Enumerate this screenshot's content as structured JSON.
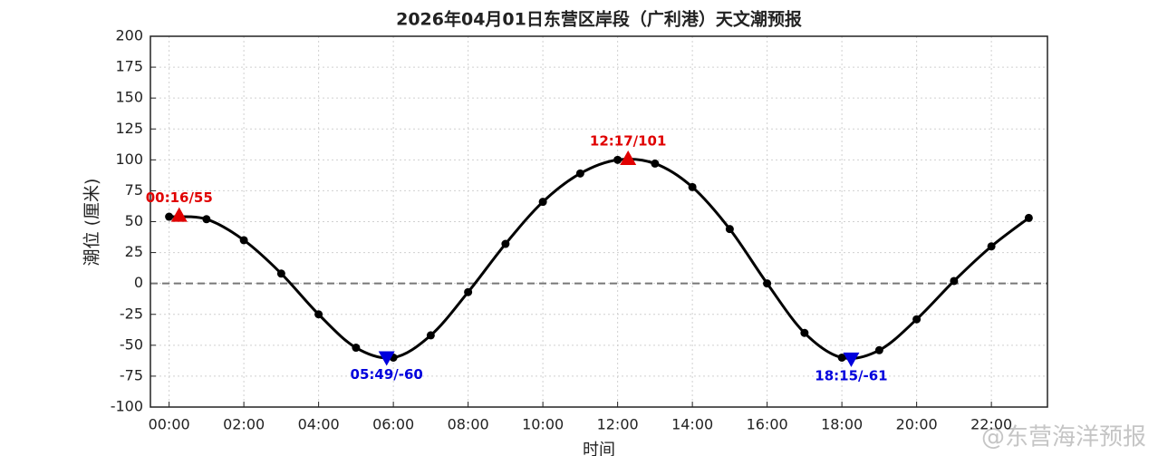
{
  "chart_data": {
    "type": "line",
    "title": "2026年04月01日东营区岸段（广利港）天文潮预报",
    "x_label": "时间",
    "y_label": "潮位 (厘米)",
    "x": [
      0,
      1,
      2,
      3,
      4,
      5,
      6,
      7,
      8,
      9,
      10,
      11,
      12,
      13,
      14,
      15,
      16,
      17,
      18,
      19,
      20,
      21,
      22,
      23
    ],
    "series": [
      {
        "color": "#000000",
        "values": [
          54,
          52,
          35,
          8,
          -25,
          -52,
          -60,
          -42,
          -7,
          32,
          66,
          89,
          100,
          97,
          78,
          44,
          0,
          -40,
          -60,
          -54,
          -29,
          2,
          30,
          53
        ]
      }
    ],
    "xlim": [
      -0.5,
      23.5
    ],
    "xticks": [
      {
        "value": 0,
        "label": "00:00"
      },
      {
        "value": 2,
        "label": "02:00"
      },
      {
        "value": 4,
        "label": "04:00"
      },
      {
        "value": 6,
        "label": "06:00"
      },
      {
        "value": 8,
        "label": "08:00"
      },
      {
        "value": 10,
        "label": "10:00"
      },
      {
        "value": 12,
        "label": "12:00"
      },
      {
        "value": 14,
        "label": "14:00"
      },
      {
        "value": 16,
        "label": "16:00"
      },
      {
        "value": 18,
        "label": "18:00"
      },
      {
        "value": 20,
        "label": "20:00"
      },
      {
        "value": 22,
        "label": "22:00"
      }
    ],
    "ylim": [
      -100,
      200
    ],
    "yticks": [
      -100,
      -75,
      -50,
      -25,
      0,
      25,
      50,
      75,
      100,
      125,
      150,
      175,
      200
    ],
    "grid": true,
    "reference_line": 0,
    "extrema": [
      {
        "label": "00:16/55",
        "x": 0.27,
        "value": 55,
        "kind": "high",
        "color": "#e00000"
      },
      {
        "label": "05:49/-60",
        "x": 5.82,
        "value": -60,
        "kind": "low",
        "color": "#0000dd"
      },
      {
        "label": "12:17/101",
        "x": 12.28,
        "value": 101,
        "kind": "high",
        "color": "#e00000"
      },
      {
        "label": "18:15/-61",
        "x": 18.25,
        "value": -61,
        "kind": "low",
        "color": "#0000dd"
      }
    ],
    "watermark": "@东营海洋预报"
  }
}
